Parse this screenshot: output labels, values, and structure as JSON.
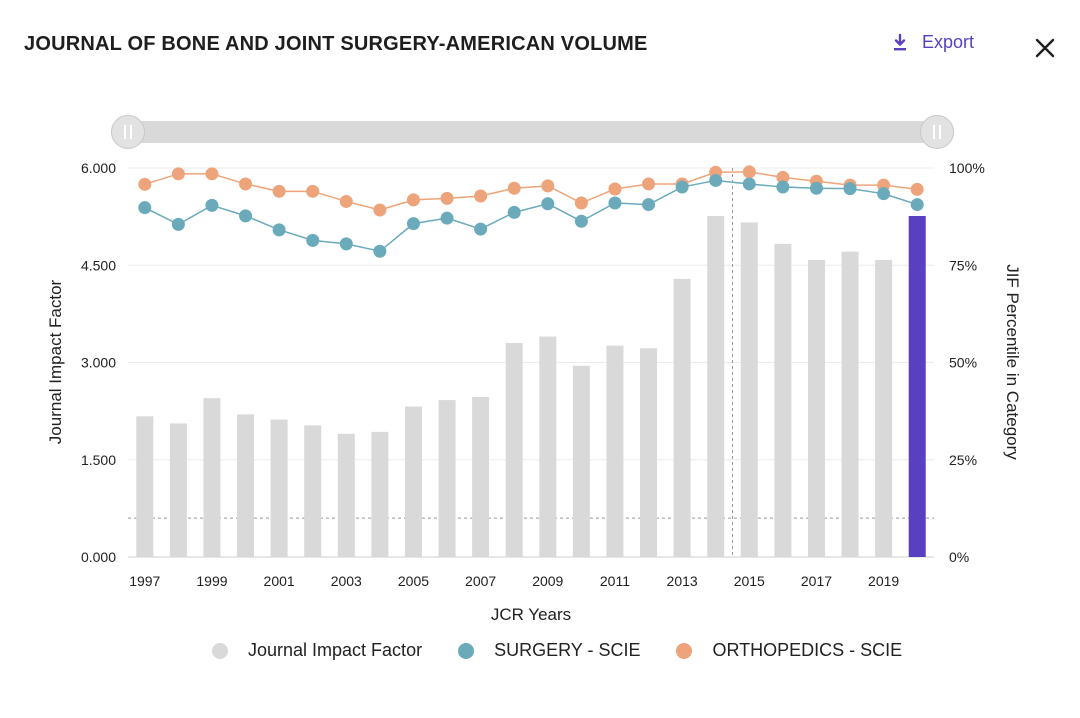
{
  "header": {
    "title": "JOURNAL OF BONE AND JOINT SURGERY-AMERICAN VOLUME",
    "export_label": "Export"
  },
  "icons": {
    "export": "download-icon",
    "close": "close-icon",
    "slider": "range-slider"
  },
  "colors": {
    "bar": "#d9d9d9",
    "bar_selected": "#5a3fc0",
    "surgery": "#6aaabb",
    "orthopedics": "#eea47a",
    "accent": "#5a3fc0"
  },
  "chart_data": {
    "type": "bar",
    "xlabel": "JCR Years",
    "ylabel_left": "Journal Impact Factor",
    "ylabel_right": "JIF Percentile in Category",
    "ylim_left": [
      0,
      6
    ],
    "ylim_right": [
      0,
      100
    ],
    "yticks_left": [
      "0.000",
      "1.500",
      "3.000",
      "4.500",
      "6.000"
    ],
    "yticks_right": [
      "0%",
      "25%",
      "50%",
      "75%",
      "100%"
    ],
    "xtick_labels": [
      "1997",
      "1999",
      "2001",
      "2003",
      "2005",
      "2007",
      "2009",
      "2011",
      "2013",
      "2015",
      "2017",
      "2019"
    ],
    "categories": [
      "1997",
      "1998",
      "1999",
      "2000",
      "2001",
      "2002",
      "2003",
      "2004",
      "2005",
      "2006",
      "2007",
      "2008",
      "2009",
      "2010",
      "2011",
      "2012",
      "2013",
      "2014",
      "2015",
      "2016",
      "2017",
      "2018",
      "2019",
      "2020"
    ],
    "selected_category": "2020",
    "series": [
      {
        "name": "Journal Impact Factor",
        "axis": "left",
        "values": [
          2.17,
          2.06,
          2.45,
          2.2,
          2.12,
          2.03,
          1.9,
          1.93,
          2.32,
          2.42,
          2.47,
          3.3,
          3.4,
          2.95,
          3.26,
          3.22,
          4.29,
          5.26,
          5.16,
          4.83,
          4.58,
          4.71,
          4.58,
          5.26
        ]
      },
      {
        "name": "SURGERY - SCIE",
        "axis": "right",
        "values": [
          89.8,
          85.5,
          90.4,
          87.7,
          84.1,
          81.4,
          80.5,
          78.6,
          85.7,
          87.1,
          84.3,
          88.6,
          90.8,
          86.3,
          91.0,
          90.6,
          95.1,
          96.8,
          95.9,
          95.1,
          94.8,
          94.7,
          93.4,
          90.6
        ]
      },
      {
        "name": "ORTHOPEDICS - SCIE",
        "axis": "right",
        "values": [
          95.8,
          98.5,
          98.5,
          95.9,
          94.0,
          94.0,
          91.4,
          89.2,
          91.8,
          92.2,
          92.8,
          94.8,
          95.4,
          91.0,
          94.6,
          95.9,
          95.9,
          98.9,
          99.0,
          97.6,
          96.6,
          95.6,
          95.6,
          94.5
        ]
      }
    ],
    "reference_line_left": 0.6,
    "legend": [
      "Journal Impact Factor",
      "SURGERY - SCIE",
      "ORTHOPEDICS - SCIE"
    ],
    "legend_position": "bottom",
    "grid": true
  }
}
